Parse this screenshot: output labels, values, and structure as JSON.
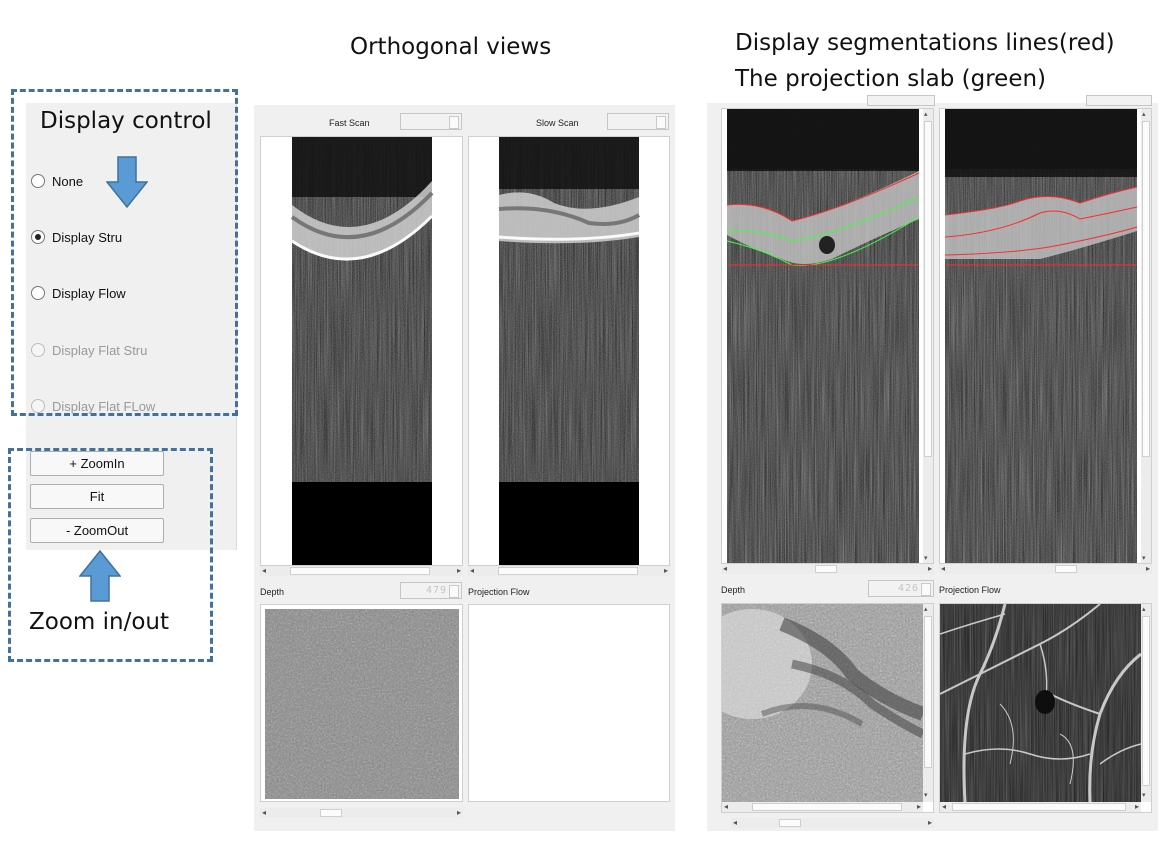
{
  "annotations": {
    "orthogonal_views": "Orthogonal views",
    "segmentation_line1": "Display segmentations lines(red)",
    "segmentation_line2": "The projection slab (green)",
    "display_control": "Display control",
    "zoom_inout": "Zoom in/out"
  },
  "display_options": [
    {
      "label": "None",
      "checked": false,
      "enabled": true
    },
    {
      "label": "Display Stru",
      "checked": true,
      "enabled": true
    },
    {
      "label": "Display Flow",
      "checked": false,
      "enabled": true
    },
    {
      "label": "Display Flat Stru",
      "checked": false,
      "enabled": false
    },
    {
      "label": "Display Flat FLow",
      "checked": false,
      "enabled": false
    }
  ],
  "zoom_buttons": {
    "zoom_in": "+ ZoomIn",
    "fit": "Fit",
    "zoom_out": "- ZoomOut"
  },
  "left_viewer": {
    "fast_scan_label": "Fast Scan",
    "slow_scan_label": "Slow Scan",
    "depth_label": "Depth",
    "depth_value": "479",
    "projection_flow_label": "Projection Flow"
  },
  "right_viewer": {
    "depth_label": "Depth",
    "depth_value": "426",
    "projection_flow_label": "Projection Flow"
  },
  "colors": {
    "annotation_border": "#41719c",
    "arrow_fill": "#5b9bd5",
    "segmentation_line": "#ff2a2a",
    "projection_slab_line": "#3cff3c",
    "panel_background": "#f0f0f0"
  }
}
